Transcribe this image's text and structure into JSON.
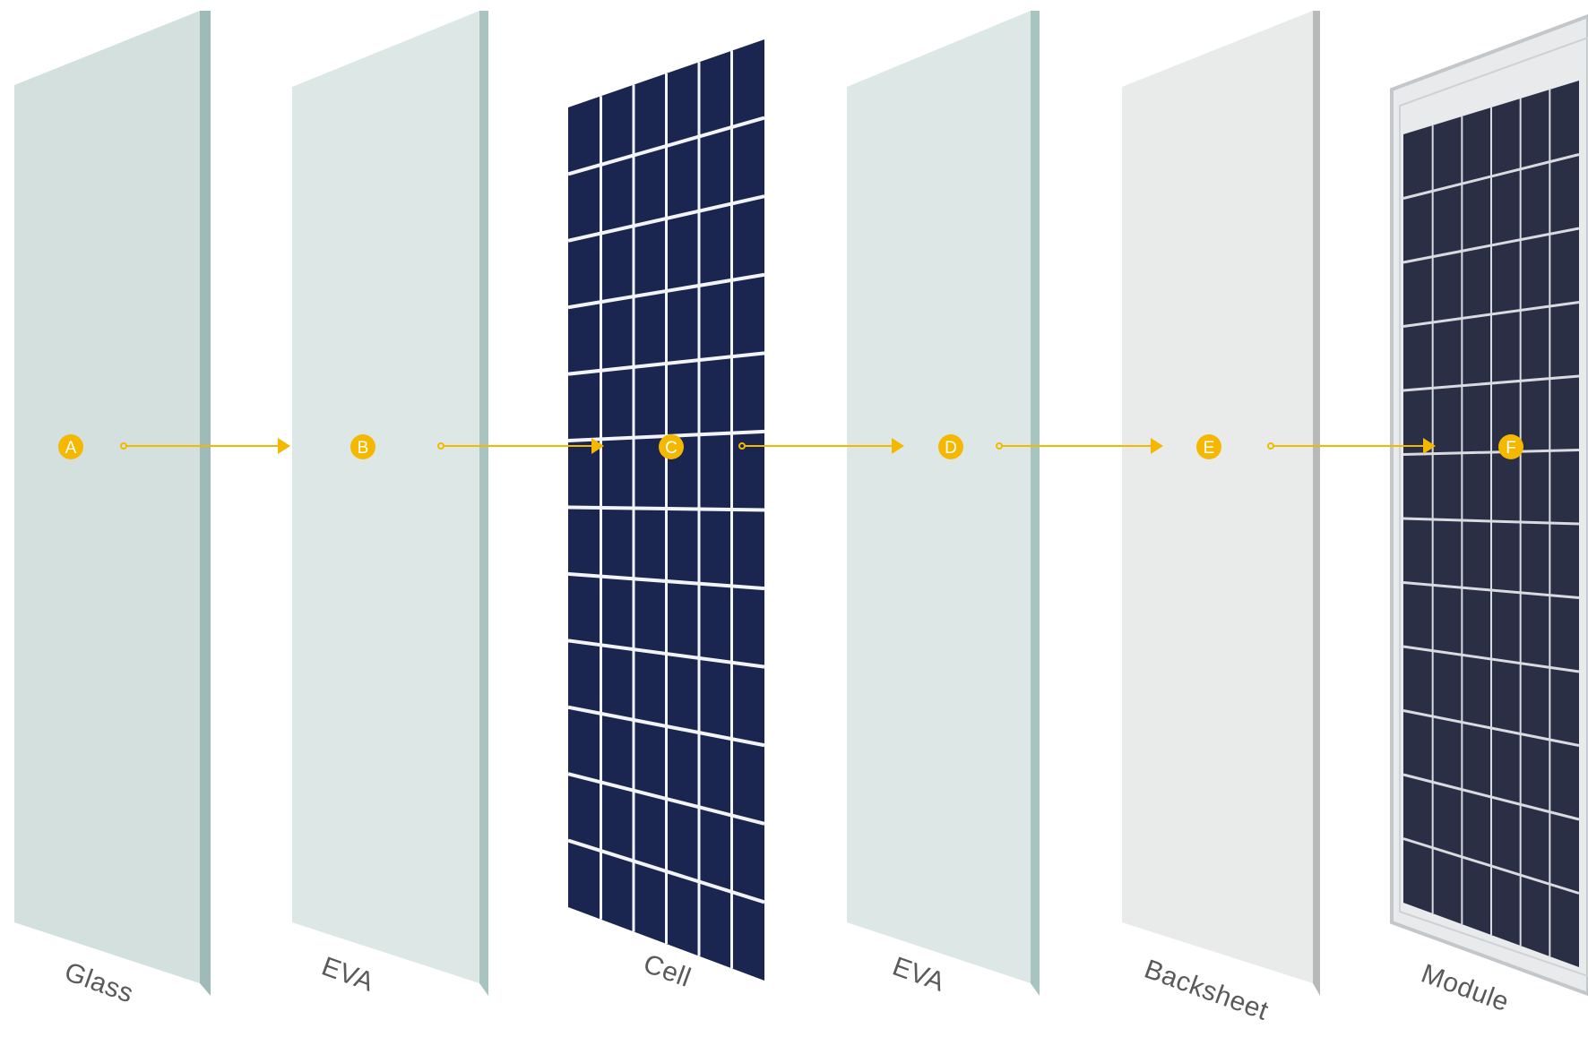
{
  "colors": {
    "glass_face": "#d3e0de",
    "glass_edge": "#9fbbb9",
    "eva_face": "#dde8e6",
    "eva_edge": "#a8c4c1",
    "cell_face": "#1a2650",
    "cell_gap": "#f2f4f8",
    "backsheet_face": "#e9eaea",
    "backsheet_edge": "#b7b9ba",
    "module_frame": "#e8eaec",
    "module_frame_edge": "#c4c7ca",
    "module_cells": "#2a2f45",
    "accent": "#f5b800",
    "label": "#5a5a5a"
  },
  "layers": [
    {
      "id": "glass",
      "label": "Glass",
      "marker": "A",
      "icon": "glass-sheet-icon"
    },
    {
      "id": "eva-front",
      "label": "EVA",
      "marker": "B",
      "icon": "eva-sheet-icon"
    },
    {
      "id": "cell",
      "label": "Cell",
      "marker": "C",
      "icon": "solar-cell-grid-icon"
    },
    {
      "id": "eva-back",
      "label": "EVA",
      "marker": "D",
      "icon": "eva-sheet-icon"
    },
    {
      "id": "backsheet",
      "label": "Backsheet",
      "marker": "E",
      "icon": "backsheet-icon"
    },
    {
      "id": "module",
      "label": "Module",
      "marker": "F",
      "icon": "solar-module-icon"
    }
  ]
}
